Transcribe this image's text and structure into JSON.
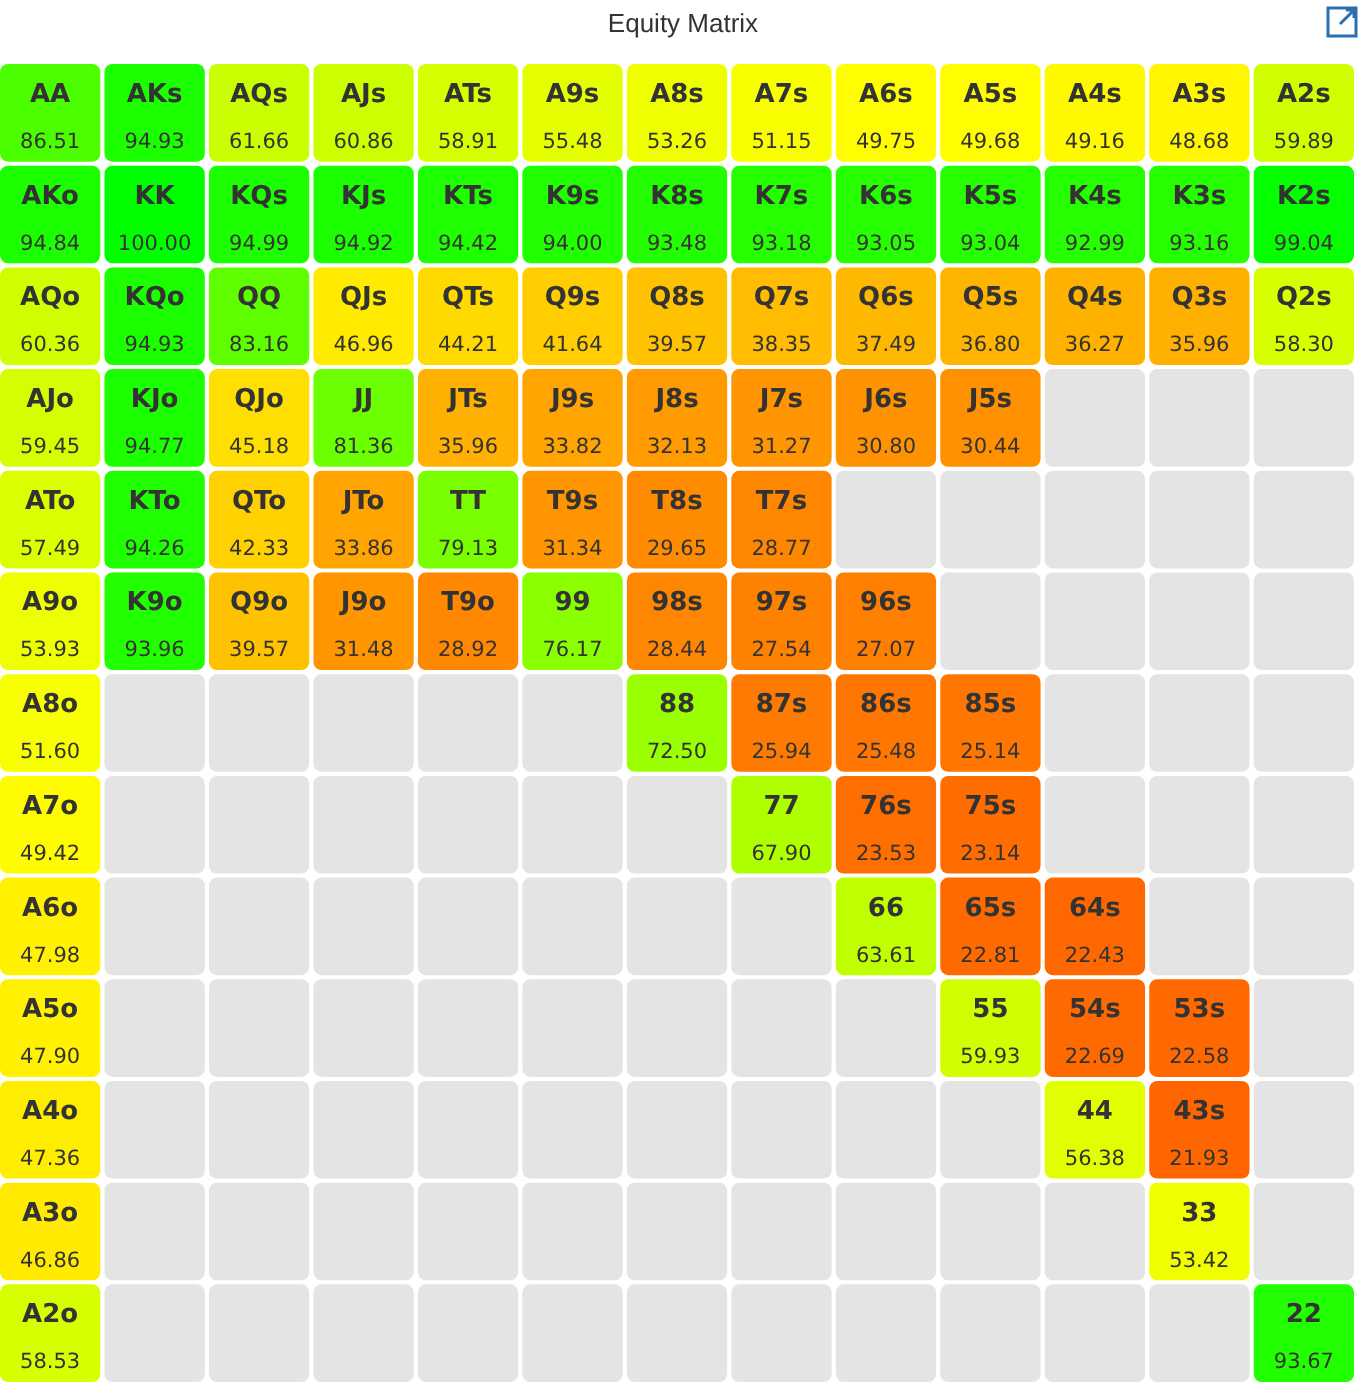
{
  "chart_data": {
    "type": "heatmap",
    "title": "Equity Matrix",
    "cell_labels": [
      [
        "86.51",
        "94.93",
        "61.66",
        "60.86",
        "58.91",
        "55.48",
        "53.26",
        "51.15",
        "49.75",
        "49.68",
        "49.16",
        "48.68",
        "59.89"
      ],
      [
        "94.84",
        "100.00",
        "94.99",
        "94.92",
        "94.42",
        "94.00",
        "93.48",
        "93.18",
        "93.05",
        "93.04",
        "92.99",
        "93.16",
        "99.04"
      ],
      [
        "60.36",
        "94.93",
        "83.16",
        "46.96",
        "44.21",
        "41.64",
        "39.57",
        "38.35",
        "37.49",
        "36.80",
        "36.27",
        "35.96",
        "58.30"
      ],
      [
        "59.45",
        "94.77",
        "45.18",
        "81.36",
        "35.96",
        "33.82",
        "32.13",
        "31.27",
        "30.80",
        "30.44",
        null,
        null,
        null
      ],
      [
        "57.49",
        "94.26",
        "42.33",
        "33.86",
        "79.13",
        "31.34",
        "29.65",
        "28.77",
        null,
        null,
        null,
        null,
        null
      ],
      [
        "53.93",
        "93.96",
        "39.57",
        "31.48",
        "28.92",
        "76.17",
        "28.44",
        "27.54",
        "27.07",
        null,
        null,
        null,
        null
      ],
      [
        "51.60",
        null,
        null,
        null,
        null,
        null,
        "72.50",
        "25.94",
        "25.48",
        "25.14",
        null,
        null,
        null
      ],
      [
        "49.42",
        null,
        null,
        null,
        null,
        null,
        null,
        "67.90",
        "23.53",
        "23.14",
        null,
        null,
        null
      ],
      [
        "47.98",
        null,
        null,
        null,
        null,
        null,
        null,
        null,
        "63.61",
        "22.81",
        "22.43",
        null,
        null
      ],
      [
        "47.90",
        null,
        null,
        null,
        null,
        null,
        null,
        null,
        null,
        "59.93",
        "22.69",
        "22.58",
        null
      ],
      [
        "47.36",
        null,
        null,
        null,
        null,
        null,
        null,
        null,
        null,
        null,
        "56.38",
        "21.93",
        null
      ],
      [
        "46.86",
        null,
        null,
        null,
        null,
        null,
        null,
        null,
        null,
        null,
        null,
        "53.42",
        null
      ],
      [
        "58.53",
        null,
        null,
        null,
        null,
        null,
        null,
        null,
        null,
        null,
        null,
        null,
        "93.67"
      ]
    ],
    "categories": [
      null,
      null,
      null,
      null,
      null,
      null,
      null,
      null,
      null,
      null,
      null,
      null,
      null
    ],
    "y_categories": [
      null,
      null,
      null,
      null,
      null,
      null,
      null,
      null,
      null,
      null,
      null,
      null,
      null
    ],
    "cells": [
      [
        86.51,
        94.93,
        61.66,
        60.86,
        58.91,
        55.48,
        53.26,
        51.15,
        49.75,
        49.68,
        49.16,
        48.68,
        59.89
      ],
      [
        94.84,
        100.0,
        94.99,
        94.92,
        94.42,
        94.0,
        93.48,
        93.18,
        93.05,
        93.04,
        92.99,
        93.16,
        99.04
      ],
      [
        60.36,
        94.93,
        83.16,
        46.96,
        44.21,
        41.64,
        39.57,
        38.35,
        37.49,
        36.8,
        36.27,
        35.96,
        58.3
      ],
      [
        59.45,
        94.77,
        45.18,
        81.36,
        35.96,
        33.82,
        32.13,
        31.27,
        30.8,
        30.44,
        null,
        null,
        null
      ],
      [
        57.49,
        94.26,
        42.33,
        33.86,
        79.13,
        31.34,
        29.65,
        28.77,
        null,
        null,
        null,
        null,
        null
      ],
      [
        53.93,
        93.96,
        39.57,
        31.48,
        28.92,
        76.17,
        28.44,
        27.54,
        27.07,
        null,
        null,
        null,
        null
      ],
      [
        51.6,
        null,
        null,
        null,
        null,
        null,
        72.5,
        25.94,
        25.48,
        25.14,
        null,
        null,
        null
      ],
      [
        49.42,
        null,
        null,
        null,
        null,
        null,
        null,
        67.9,
        23.53,
        23.14,
        null,
        null,
        null
      ],
      [
        47.98,
        null,
        null,
        null,
        null,
        null,
        null,
        null,
        63.61,
        22.81,
        22.43,
        null,
        null
      ],
      [
        47.9,
        null,
        null,
        null,
        null,
        null,
        null,
        null,
        null,
        59.93,
        22.69,
        22.58,
        null
      ],
      [
        47.36,
        null,
        null,
        null,
        null,
        null,
        null,
        null,
        null,
        null,
        56.38,
        21.93,
        null
      ],
      [
        46.86,
        null,
        null,
        null,
        null,
        null,
        null,
        null,
        null,
        null,
        null,
        53.42,
        null
      ],
      [
        58.53,
        null,
        null,
        null,
        null,
        null,
        null,
        null,
        null,
        null,
        null,
        null,
        93.67
      ]
    ],
    "annotations": [
      "AA",
      "AKs",
      "AQs",
      "AJs",
      "ATs",
      "A9s",
      "A8s",
      "A7s",
      "A6s",
      "A5s",
      "A4s",
      "A3s",
      "A2s",
      "AKo",
      "KK",
      "KQs",
      "KJs",
      "KTs",
      "K9s",
      "K8s",
      "K7s",
      "K6s",
      "K5s",
      "K4s",
      "K3s",
      "K2s",
      "AQo",
      "KQo",
      "QQ",
      "QJs",
      "QTs",
      "Q9s",
      "Q8s",
      "Q7s",
      "Q6s",
      "Q5s",
      "Q4s",
      "Q3s",
      "Q2s",
      "AJo",
      "KJo",
      "QJo",
      "JJ",
      "JTs",
      "J9s",
      "J8s",
      "J7s",
      "J6s",
      "J5s",
      "ATo",
      "KTo",
      "QTo",
      "JTo",
      "TT",
      "T9s",
      "T8s",
      "T7s",
      "A9o",
      "K9o",
      "Q9o",
      "J9o",
      "T9o",
      "99",
      "98s",
      "97s",
      "96s",
      "A8o",
      "88",
      "87s",
      "86s",
      "85s",
      "A7o",
      "77",
      "76s",
      "75s",
      "A6o",
      "66",
      "65s",
      "64s",
      "A5o",
      "55",
      "54s",
      "53s",
      "A4o",
      "44",
      "43s",
      "A3o",
      "33",
      "A2o",
      "22"
    ]
  }
}
